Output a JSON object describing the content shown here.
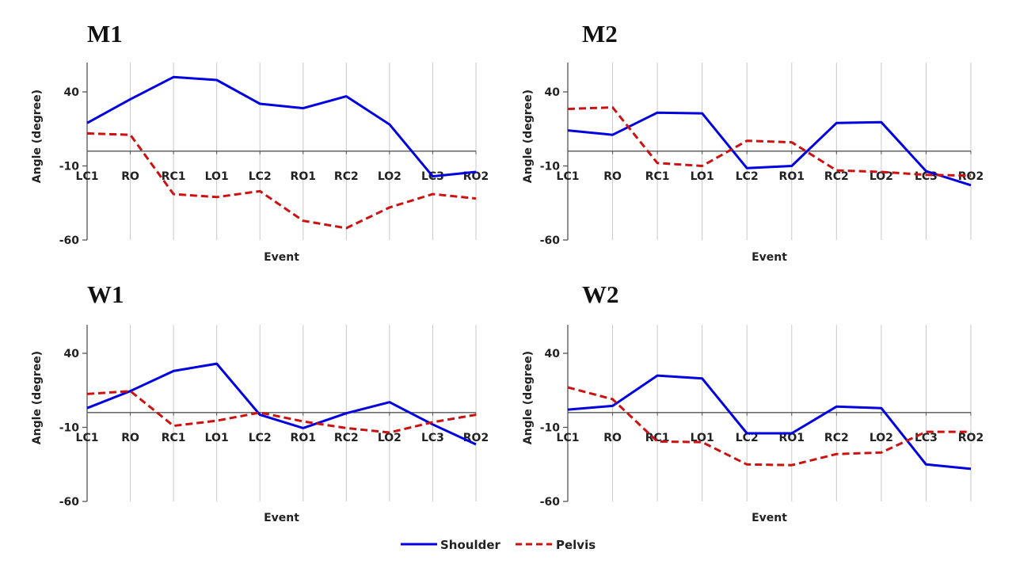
{
  "legend": {
    "items": [
      {
        "name": "Shoulder",
        "color": "#0000e0",
        "style": "solid"
      },
      {
        "name": "Pelvis",
        "color": "#cc1111",
        "style": "dashed"
      }
    ]
  },
  "chart_data": [
    {
      "type": "line",
      "title": "M1",
      "xlabel": "Event",
      "ylabel": "Angle (degree)",
      "categories": [
        "LC1",
        "RO",
        "RC1",
        "LO1",
        "LC2",
        "RO1",
        "RC2",
        "LO2",
        "LC3",
        "RO2"
      ],
      "yticks": [
        40,
        -10,
        -60
      ],
      "ylim": [
        -60,
        60
      ],
      "grid": "vertical",
      "legend": "bottom-center",
      "series": [
        {
          "name": "Shoulder",
          "values": [
            19,
            35,
            50,
            48,
            32,
            29,
            37,
            18,
            -17,
            -14
          ]
        },
        {
          "name": "Pelvis",
          "values": [
            12,
            11,
            -29,
            -31,
            -27,
            -47,
            -52,
            -38,
            -29,
            -32
          ]
        }
      ]
    },
    {
      "type": "line",
      "title": "M2",
      "xlabel": "Event",
      "ylabel": "Angle (degree)",
      "categories": [
        "LC1",
        "RO",
        "RC1",
        "LO1",
        "LC2",
        "RO1",
        "RC2",
        "LO2",
        "LC3",
        "RO2"
      ],
      "yticks": [
        40,
        -10,
        -60
      ],
      "ylim": [
        -60,
        60
      ],
      "grid": "vertical",
      "legend": "bottom-center",
      "series": [
        {
          "name": "Shoulder",
          "values": [
            14,
            11,
            26,
            25.5,
            -11.5,
            -10,
            19,
            19.5,
            -13.5,
            -23
          ]
        },
        {
          "name": "Pelvis",
          "values": [
            28.5,
            29.5,
            -8,
            -10,
            7,
            6,
            -13,
            -14,
            -16,
            -16.5
          ]
        }
      ]
    },
    {
      "type": "line",
      "title": "W1",
      "xlabel": "Event",
      "ylabel": "Angle (degree)",
      "categories": [
        "LC1",
        "RO",
        "RC1",
        "LO1",
        "LC2",
        "RO1",
        "RC2",
        "LO2",
        "LC3",
        "RO2"
      ],
      "yticks": [
        40,
        -10,
        -60
      ],
      "ylim": [
        -60,
        60
      ],
      "grid": "vertical",
      "legend": "bottom-center",
      "series": [
        {
          "name": "Shoulder",
          "values": [
            3,
            14.5,
            28,
            33,
            -1.5,
            -10.5,
            -0.5,
            7,
            -8,
            -21.5
          ]
        },
        {
          "name": "Pelvis",
          "values": [
            12.5,
            14.5,
            -9,
            -5.5,
            0,
            -6,
            -10.5,
            -13.5,
            -6.5,
            -1.5
          ]
        }
      ]
    },
    {
      "type": "line",
      "title": "W2",
      "xlabel": "Event",
      "ylabel": "Angle (degree)",
      "categories": [
        "LC1",
        "RO",
        "RC1",
        "LO1",
        "LC2",
        "RO1",
        "RC2",
        "LO2",
        "LC3",
        "RO2"
      ],
      "yticks": [
        40,
        -10,
        -60
      ],
      "ylim": [
        -60,
        60
      ],
      "grid": "vertical",
      "legend": "bottom-center",
      "series": [
        {
          "name": "Shoulder",
          "values": [
            2,
            4.5,
            25,
            23,
            -14,
            -14,
            4,
            3,
            -35,
            -38
          ]
        },
        {
          "name": "Pelvis",
          "values": [
            17,
            9,
            -19.5,
            -20,
            -35,
            -35.5,
            -28,
            -27,
            -13,
            -13
          ]
        }
      ]
    }
  ]
}
